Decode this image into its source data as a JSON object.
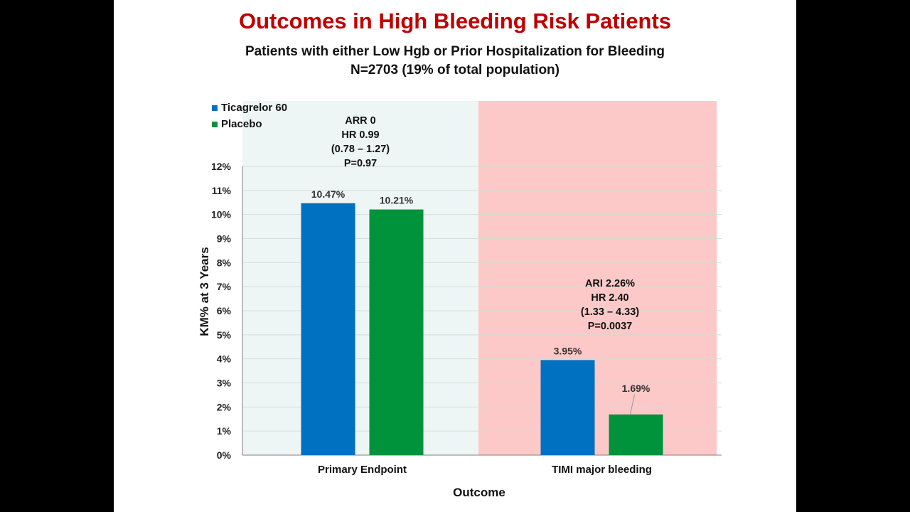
{
  "title": "Outcomes in High Bleeding Risk Patients",
  "subtitle_line1": "Patients with either Low Hgb or Prior Hospitalization for Bleeding",
  "subtitle_line2": "N=2703 (19% of total population)",
  "colors": {
    "title": "#c00000",
    "series_ticagrelor": "#0070c0",
    "series_placebo": "#00933c",
    "panel_primary_bg": "#eef6f5",
    "panel_bleeding_bg": "#fcc8c8"
  },
  "annotations": [
    {
      "group": "Primary Endpoint",
      "lines": [
        "ARR 0",
        "HR 0.99",
        "(0.78 – 1.27)",
        "P=0.97"
      ]
    },
    {
      "group": "TIMI major bleeding",
      "lines": [
        "ARI 2.26%",
        "HR 2.40",
        "(1.33 – 4.33)",
        "P=0.0037"
      ]
    }
  ],
  "chart_data": {
    "type": "bar",
    "categories": [
      "Primary Endpoint",
      "TIMI major bleeding"
    ],
    "series": [
      {
        "name": "Ticagrelor 60",
        "values": [
          10.47,
          3.95
        ],
        "labels": [
          "10.47%",
          "3.95%"
        ]
      },
      {
        "name": "Placebo",
        "values": [
          10.21,
          1.69
        ],
        "labels": [
          "10.21%",
          "1.69%"
        ]
      }
    ],
    "xlabel": "Outcome",
    "ylabel": "KM% at 3 Years",
    "ylim": [
      0,
      12
    ],
    "yticks": [
      "0%",
      "1%",
      "2%",
      "3%",
      "4%",
      "5%",
      "6%",
      "7%",
      "8%",
      "9%",
      "10%",
      "11%",
      "12%"
    ],
    "legend_position": "top-left",
    "grid": true
  }
}
